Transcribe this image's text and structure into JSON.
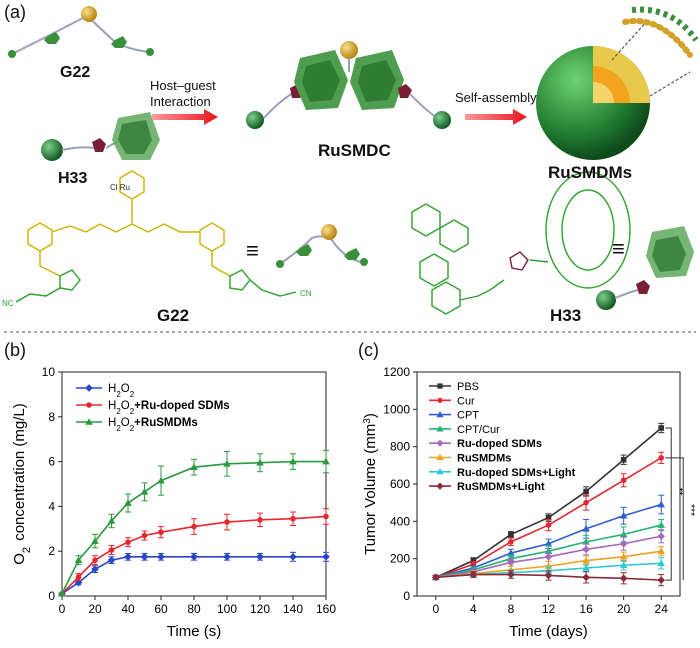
{
  "panel_a": {
    "label": "(a)",
    "g22_label": "G22",
    "h33_label": "H33",
    "arrow1_line1": "Host–guest",
    "arrow1_line2": "Interaction",
    "arrow2_label": "Self-assembly",
    "rusmdc_label": "RuSMDC",
    "rusmdms_label": "RuSMDMs",
    "g22_struct_label": "G22",
    "h33_struct_label": "H33",
    "equiv_symbol": "≡",
    "colors": {
      "gold": "#d3a127",
      "green": "#3a8f3a",
      "dark_green": "#1f5f2a",
      "maroon": "#7a2036",
      "structure_yellow": "#c8b400",
      "structure_green": "#2ea02e"
    }
  },
  "panel_b": {
    "label": "(b)"
  },
  "panel_c": {
    "label": "(c)"
  },
  "chart_data": [
    {
      "type": "line",
      "xlabel": "Time (s)",
      "ylabel": "O2 concentration (mg/L)",
      "xlim": [
        0,
        160
      ],
      "ylim": [
        0,
        10
      ],
      "xticks": [
        0,
        20,
        40,
        60,
        80,
        100,
        120,
        140,
        160
      ],
      "yticks": [
        0,
        2,
        4,
        6,
        8,
        10
      ],
      "legend_position": "top-left",
      "series": [
        {
          "name": "H2O2",
          "color": "#2b46c8",
          "x": [
            0,
            10,
            20,
            30,
            40,
            50,
            60,
            80,
            100,
            120,
            140,
            160
          ],
          "y": [
            0.1,
            0.6,
            1.2,
            1.6,
            1.75,
            1.75,
            1.75,
            1.75,
            1.75,
            1.75,
            1.75,
            1.75
          ],
          "err": [
            0,
            0.1,
            0.15,
            0.15,
            0.15,
            0.15,
            0.15,
            0.15,
            0.15,
            0.15,
            0.2,
            0.2
          ]
        },
        {
          "name": "H2O2+Ru-doped SDMs",
          "color": "#e8262d",
          "x": [
            0,
            10,
            20,
            30,
            40,
            50,
            60,
            80,
            100,
            120,
            140,
            160
          ],
          "y": [
            0.1,
            0.85,
            1.6,
            2.05,
            2.4,
            2.7,
            2.85,
            3.1,
            3.3,
            3.4,
            3.45,
            3.55
          ],
          "err": [
            0,
            0.15,
            0.2,
            0.2,
            0.2,
            0.2,
            0.25,
            0.35,
            0.35,
            0.3,
            0.3,
            0.35
          ]
        },
        {
          "name": "H2O2+RuSMDMs",
          "color": "#2a9a3c",
          "x": [
            0,
            10,
            20,
            30,
            40,
            50,
            60,
            80,
            100,
            120,
            140,
            160
          ],
          "y": [
            0.1,
            1.6,
            2.45,
            3.35,
            4.15,
            4.65,
            5.15,
            5.75,
            5.9,
            5.95,
            6.0,
            6.0
          ],
          "err": [
            0,
            0.2,
            0.3,
            0.3,
            0.4,
            0.4,
            0.65,
            0.35,
            0.55,
            0.4,
            0.35,
            0.5
          ]
        }
      ]
    },
    {
      "type": "line",
      "xlabel": "Time (days)",
      "ylabel": "Tumor Volume (mm3)",
      "xlim": [
        -2,
        26
      ],
      "ylim": [
        0,
        1200
      ],
      "xticks": [
        0,
        4,
        8,
        12,
        16,
        20,
        24
      ],
      "yticks": [
        0,
        200,
        400,
        600,
        800,
        1000,
        1200
      ],
      "legend_position": "top-left",
      "significance": [
        "**",
        "***"
      ],
      "series": [
        {
          "name": "PBS",
          "color": "#333333",
          "bold": false,
          "x": [
            0,
            4,
            8,
            12,
            16,
            20,
            24
          ],
          "y": [
            100,
            190,
            330,
            420,
            560,
            730,
            900
          ],
          "err": [
            10,
            15,
            15,
            20,
            25,
            25,
            25
          ]
        },
        {
          "name": "Cur",
          "color": "#e8262d",
          "bold": false,
          "x": [
            0,
            4,
            8,
            12,
            16,
            20,
            24
          ],
          "y": [
            100,
            170,
            290,
            380,
            500,
            620,
            740
          ],
          "err": [
            10,
            15,
            20,
            30,
            40,
            35,
            30
          ]
        },
        {
          "name": "CPT",
          "color": "#2e5fcc",
          "bold": false,
          "x": [
            0,
            4,
            8,
            12,
            16,
            20,
            24
          ],
          "y": [
            100,
            150,
            230,
            280,
            360,
            430,
            490
          ],
          "err": [
            10,
            15,
            20,
            25,
            50,
            45,
            50
          ]
        },
        {
          "name": "CPT/Cur",
          "color": "#22b573",
          "bold": false,
          "x": [
            0,
            4,
            8,
            12,
            16,
            20,
            24
          ],
          "y": [
            100,
            140,
            200,
            240,
            290,
            330,
            380
          ],
          "err": [
            10,
            15,
            20,
            30,
            35,
            40,
            30
          ]
        },
        {
          "name": "Ru-doped SDMs",
          "color": "#a569bd",
          "bold": true,
          "x": [
            0,
            4,
            8,
            12,
            16,
            20,
            24
          ],
          "y": [
            100,
            130,
            180,
            210,
            250,
            280,
            320
          ],
          "err": [
            10,
            15,
            20,
            25,
            30,
            35,
            35
          ]
        },
        {
          "name": "RuSMDMs",
          "color": "#f0a020",
          "bold": true,
          "x": [
            0,
            4,
            8,
            12,
            16,
            20,
            24
          ],
          "y": [
            100,
            120,
            140,
            160,
            190,
            210,
            240
          ],
          "err": [
            10,
            15,
            20,
            25,
            25,
            25,
            25
          ]
        },
        {
          "name": "Ru-doped SDMs+Light",
          "color": "#2ec7d6",
          "bold": true,
          "x": [
            0,
            4,
            8,
            12,
            16,
            20,
            24
          ],
          "y": [
            100,
            115,
            125,
            135,
            150,
            165,
            175
          ],
          "err": [
            10,
            15,
            15,
            20,
            20,
            25,
            30
          ]
        },
        {
          "name": "RuSMDMs+Light",
          "color": "#8b2a3a",
          "bold": true,
          "x": [
            0,
            4,
            8,
            12,
            16,
            20,
            24
          ],
          "y": [
            100,
            115,
            115,
            110,
            100,
            95,
            85
          ],
          "err": [
            10,
            15,
            20,
            25,
            30,
            30,
            30
          ]
        }
      ]
    }
  ]
}
